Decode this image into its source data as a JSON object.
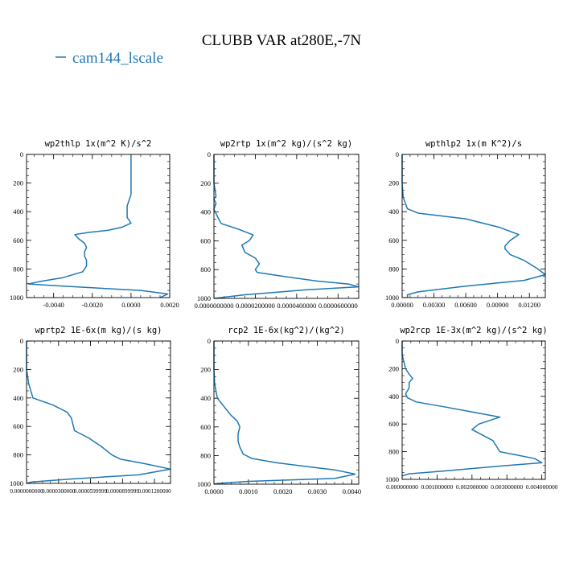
{
  "figure": {
    "title": "CLUBB VAR at280E,-7N",
    "legend": {
      "label": "cam144_lscale",
      "color": "#1f77b4",
      "placement": "top-left"
    }
  },
  "chart_data": [
    {
      "type": "line",
      "title": "wp2thlp  1x(m^2 K)/s^2",
      "xlim": [
        -0.0054,
        0.002
      ],
      "ylim": [
        0,
        1000
      ],
      "y_inverted": true,
      "grid": false,
      "xticks": [
        -0.004,
        -0.002,
        0.0,
        0.002
      ],
      "xtick_labels": [
        "-0.0040",
        "-0.0020",
        "0.0000",
        "0.0020"
      ],
      "yticks": [
        0,
        200,
        400,
        600,
        800,
        1000
      ],
      "ytick_labels": [
        "0",
        "200",
        "400",
        "600",
        "800",
        "1000"
      ],
      "series": [
        {
          "color": "#1f77b4",
          "x": [
            0.0,
            0.0,
            0.0,
            0.0,
            0.0,
            -0.0001,
            -0.0002,
            -0.0002,
            -0.0002,
            -0.0001,
            0.0,
            -0.0005,
            -0.0012,
            -0.0022,
            -0.0029,
            -0.0027,
            -0.0024,
            -0.0023,
            -0.0024,
            -0.0024,
            -0.0023,
            -0.0023,
            -0.0025,
            -0.0035,
            -0.0048,
            -0.0053,
            -0.0035,
            0.0005,
            0.0019,
            0.0015
          ],
          "y": [
            0,
            100,
            200,
            240,
            280,
            320,
            360,
            400,
            440,
            460,
            480,
            510,
            530,
            545,
            560,
            590,
            620,
            650,
            680,
            710,
            740,
            780,
            820,
            860,
            890,
            905,
            920,
            950,
            975,
            1000
          ]
        }
      ]
    },
    {
      "type": "line",
      "title": "wp2rtp  1x(m^2 kg)/(s^2 kg)",
      "xlim": [
        0.0,
        7e-05
      ],
      "ylim": [
        0,
        1000
      ],
      "y_inverted": true,
      "grid": false,
      "xticks": [
        0.0,
        2e-05,
        4e-05,
        6e-05
      ],
      "xtick_labels": [
        "0.0000000000",
        "0.0000200000",
        "0.0000400000",
        "0.0000600000"
      ],
      "yticks": [
        0,
        200,
        400,
        600,
        800,
        1000
      ],
      "ytick_labels": [
        "0",
        "200",
        "400",
        "600",
        "800",
        "1000"
      ],
      "series": [
        {
          "color": "#1f77b4",
          "x": [
            0.0,
            0.0,
            0.0,
            1e-06,
            0.0,
            1e-06,
            0.0,
            1e-06,
            2e-06,
            3.5e-06,
            1.2e-05,
            1.9e-05,
            1.7e-05,
            1.35e-05,
            1.5e-05,
            2e-05,
            2.2e-05,
            2e-05,
            2.1e-05,
            3.5e-05,
            5e-05,
            6.5e-05,
            7e-05,
            4.5e-05,
            1.5e-05,
            0.0
          ],
          "y": [
            0,
            100,
            200,
            290,
            310,
            340,
            380,
            410,
            440,
            480,
            520,
            560,
            600,
            630,
            680,
            720,
            760,
            800,
            820,
            850,
            880,
            900,
            920,
            940,
            975,
            1000
          ]
        }
      ]
    },
    {
      "type": "line",
      "title": "wpthlp2  1x(m K^2)/s",
      "xlim": [
        0.0,
        0.0135
      ],
      "ylim": [
        0,
        1000
      ],
      "y_inverted": true,
      "grid": false,
      "xticks": [
        0.0,
        0.003,
        0.006,
        0.009,
        0.012
      ],
      "xtick_labels": [
        "0.00000",
        "0.00300",
        "0.00600",
        "0.00900",
        "0.01200"
      ],
      "yticks": [
        0,
        200,
        400,
        600,
        800,
        1000
      ],
      "ytick_labels": [
        "0",
        "200",
        "400",
        "600",
        "800",
        "1000"
      ],
      "series": [
        {
          "color": "#1f77b4",
          "x": [
            0.0,
            0.0,
            0.0,
            0.0001,
            0.0005,
            0.0015,
            0.006,
            0.0092,
            0.011,
            0.0102,
            0.0097,
            0.0097,
            0.0102,
            0.0115,
            0.0128,
            0.0135,
            0.0115,
            0.006,
            0.0015,
            0.0005,
            0.0005
          ],
          "y": [
            0,
            100,
            200,
            300,
            380,
            410,
            450,
            510,
            560,
            600,
            640,
            660,
            700,
            740,
            800,
            840,
            880,
            920,
            960,
            980,
            1000
          ]
        }
      ]
    },
    {
      "type": "line",
      "title": "wprtp2  1E-6x(m kg)/(s kg)",
      "xlim": [
        0.0,
        0.000135
      ],
      "ylim": [
        0,
        1000
      ],
      "y_inverted": true,
      "grid": false,
      "xticks": [
        0.0,
        3e-05,
        6e-05,
        9e-05,
        0.00012
      ],
      "xtick_labels": [
        "0.0000000000",
        "0.0000300000",
        "0.0000599999",
        "0.0000899999",
        "0.0001200000"
      ],
      "yticks": [
        0,
        200,
        400,
        600,
        800,
        1000
      ],
      "ytick_labels": [
        "0",
        "200",
        "400",
        "600",
        "800",
        "1000"
      ],
      "series": [
        {
          "color": "#1f77b4",
          "x": [
            0.0,
            0.0,
            0.0,
            2e-06,
            6e-06,
            2.5e-05,
            3.8e-05,
            4.2e-05,
            4.5e-05,
            5.8e-05,
            7e-05,
            8e-05,
            8.8e-05,
            0.00011,
            0.000135,
            0.000105,
            4e-05,
            5e-06,
            0.0
          ],
          "y": [
            0,
            100,
            200,
            300,
            400,
            450,
            500,
            540,
            630,
            680,
            740,
            800,
            830,
            860,
            900,
            940,
            970,
            990,
            1000
          ]
        }
      ]
    },
    {
      "type": "line",
      "title": "rcp2  1E-6x(kg^2)/(kg^2)",
      "xlim": [
        0.0,
        0.0042
      ],
      "ylim": [
        0,
        1000
      ],
      "y_inverted": true,
      "grid": false,
      "xticks": [
        0.0,
        0.001,
        0.002,
        0.003,
        0.004
      ],
      "xtick_labels": [
        "0.0000",
        "0.0010",
        "0.0020",
        "0.0030",
        "0.0040"
      ],
      "yticks": [
        0,
        200,
        400,
        600,
        800,
        1000
      ],
      "ytick_labels": [
        "0",
        "200",
        "400",
        "600",
        "800",
        "1000"
      ],
      "series": [
        {
          "color": "#1f77b4",
          "x": [
            0.0,
            0.0,
            0.0,
            2e-05,
            0.0001,
            0.0005,
            0.00068,
            0.00075,
            0.0007,
            0.0007,
            0.00075,
            0.00085,
            0.0011,
            0.0018,
            0.0028,
            0.0035,
            0.0041,
            0.0035,
            0.001,
            0.0001,
            0.0
          ],
          "y": [
            0,
            100,
            200,
            300,
            400,
            520,
            560,
            600,
            650,
            700,
            740,
            790,
            820,
            850,
            880,
            900,
            930,
            960,
            980,
            995,
            1000
          ]
        }
      ]
    },
    {
      "type": "line",
      "title": "wp2rcp  1E-3x(m^2 kg)/(s^2 kg)",
      "xlim": [
        0.0,
        0.0041
      ],
      "ylim": [
        0,
        1000
      ],
      "y_inverted": true,
      "grid": false,
      "xticks": [
        0.0,
        0.001,
        0.002,
        0.003,
        0.004
      ],
      "xtick_labels": [
        "0.000000000",
        "0.001000000",
        "0.002000000",
        "0.003000000",
        "0.004000000"
      ],
      "yticks": [
        0,
        200,
        400,
        600,
        800,
        1000
      ],
      "ytick_labels": [
        "0",
        "200",
        "400",
        "600",
        "800",
        "1000"
      ],
      "series": [
        {
          "color": "#1f77b4",
          "x": [
            0.0,
            0.0,
            0.0001,
            0.0002,
            0.0003,
            0.0002,
            0.0002,
            0.0001,
            0.00015,
            0.0004,
            0.0013,
            0.0028,
            0.0022,
            0.002,
            0.0023,
            0.0026,
            0.0027,
            0.0028,
            0.0032,
            0.0038,
            0.004,
            0.003,
            0.0012,
            0.0002,
            0.0
          ],
          "y": [
            0,
            100,
            200,
            240,
            270,
            300,
            340,
            380,
            410,
            440,
            480,
            550,
            600,
            640,
            680,
            720,
            760,
            800,
            820,
            850,
            880,
            900,
            940,
            960,
            975
          ]
        }
      ]
    }
  ]
}
